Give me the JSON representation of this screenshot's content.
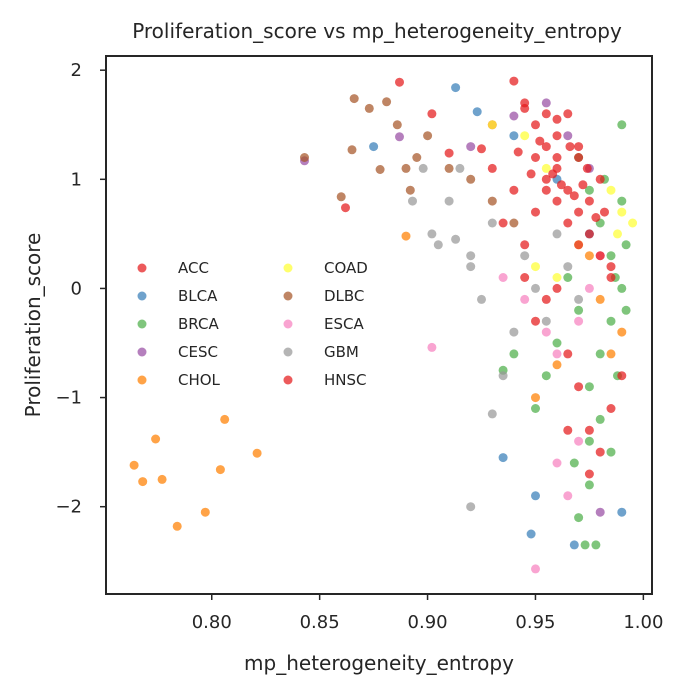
{
  "chart_data": {
    "type": "scatter",
    "title": "Proliferation_score vs mp_heterogeneity_entropy",
    "xlabel": "mp_heterogeneity_entropy",
    "ylabel": "Proliferation_score",
    "xlim": [
      0.751,
      1.004
    ],
    "ylim": [
      -2.8,
      2.13
    ],
    "x_ticks": [
      0.8,
      0.85,
      0.9,
      0.95,
      1.0
    ],
    "x_tick_labels": [
      "0.80",
      "0.85",
      "0.90",
      "0.95",
      "1.00"
    ],
    "y_ticks": [
      -2,
      -1,
      0,
      1,
      2
    ],
    "y_tick_labels": [
      "−2",
      "−1",
      "0",
      "1",
      "2"
    ],
    "grid": false,
    "legend_position": "center-left",
    "legend_columns": 2,
    "series": [
      {
        "name": "ACC",
        "color": "#e41a1c",
        "points": [
          [
            0.862,
            0.74
          ],
          [
            0.887,
            1.89
          ],
          [
            0.902,
            1.6
          ],
          [
            0.91,
            1.24
          ],
          [
            0.925,
            1.28
          ],
          [
            0.93,
            1.5
          ],
          [
            0.945,
            1.65
          ],
          [
            0.96,
            1.55
          ],
          [
            0.97,
            1.3
          ],
          [
            0.965,
            -1.3
          ],
          [
            0.975,
            -1.7
          ],
          [
            0.955,
            0.9
          ],
          [
            0.985,
            0.2
          ]
        ]
      },
      {
        "name": "BLCA",
        "color": "#377eb8",
        "points": [
          [
            0.875,
            1.3
          ],
          [
            0.913,
            1.84
          ],
          [
            0.923,
            1.62
          ],
          [
            0.94,
            1.4
          ],
          [
            0.95,
            -1.9
          ],
          [
            0.948,
            -2.25
          ],
          [
            0.935,
            -1.55
          ],
          [
            0.968,
            -2.35
          ],
          [
            0.99,
            -2.05
          ],
          [
            0.96,
            1.0
          ],
          [
            0.975,
            0.5
          ]
        ]
      },
      {
        "name": "BRCA",
        "color": "#4daf4a",
        "points": [
          [
            0.97,
            1.2
          ],
          [
            0.975,
            0.9
          ],
          [
            0.98,
            0.6
          ],
          [
            0.985,
            0.3
          ],
          [
            0.99,
            0.0
          ],
          [
            0.985,
            -0.3
          ],
          [
            0.98,
            -0.6
          ],
          [
            0.975,
            -0.9
          ],
          [
            0.98,
            -1.2
          ],
          [
            0.985,
            -1.5
          ],
          [
            0.975,
            -1.8
          ],
          [
            0.97,
            -2.1
          ],
          [
            0.973,
            -2.35
          ],
          [
            0.978,
            -2.35
          ],
          [
            0.99,
            0.8
          ],
          [
            0.992,
            0.4
          ],
          [
            0.992,
            -0.2
          ],
          [
            0.988,
            -0.8
          ],
          [
            0.99,
            1.5
          ],
          [
            0.96,
            -0.5
          ],
          [
            0.955,
            -0.8
          ],
          [
            0.95,
            -1.1
          ],
          [
            0.94,
            -0.6
          ],
          [
            0.935,
            -0.75
          ],
          [
            0.965,
            0.1
          ],
          [
            0.97,
            -0.2
          ],
          [
            0.982,
            1.0
          ],
          [
            0.987,
            0.1
          ],
          [
            0.975,
            -1.4
          ],
          [
            0.968,
            -1.6
          ]
        ]
      },
      {
        "name": "CESC",
        "color": "#984ea3",
        "points": [
          [
            0.843,
            1.17
          ],
          [
            0.887,
            1.39
          ],
          [
            0.92,
            1.3
          ],
          [
            0.94,
            1.58
          ],
          [
            0.955,
            1.7
          ],
          [
            0.965,
            1.4
          ],
          [
            0.975,
            1.1
          ],
          [
            0.98,
            -2.05
          ]
        ]
      },
      {
        "name": "CHOL",
        "color": "#ff7f00",
        "points": [
          [
            0.764,
            -1.62
          ],
          [
            0.768,
            -1.77
          ],
          [
            0.774,
            -1.38
          ],
          [
            0.777,
            -1.75
          ],
          [
            0.784,
            -2.18
          ],
          [
            0.797,
            -2.05
          ],
          [
            0.804,
            -1.66
          ],
          [
            0.806,
            -1.2
          ],
          [
            0.821,
            -1.51
          ],
          [
            0.89,
            0.48
          ],
          [
            0.99,
            -0.4
          ],
          [
            0.985,
            -0.6
          ],
          [
            0.98,
            -0.1
          ],
          [
            0.975,
            0.3
          ],
          [
            0.95,
            -1.0
          ],
          [
            0.96,
            -0.7
          ]
        ]
      },
      {
        "name": "COAD",
        "color": "#ffff33",
        "points": [
          [
            0.93,
            1.5
          ],
          [
            0.945,
            1.4
          ],
          [
            0.955,
            1.1
          ],
          [
            0.985,
            0.9
          ],
          [
            0.99,
            0.7
          ],
          [
            0.995,
            0.6
          ],
          [
            0.988,
            0.5
          ],
          [
            0.95,
            0.2
          ],
          [
            0.96,
            0.1
          ],
          [
            0.97,
            0.4
          ]
        ]
      },
      {
        "name": "DLBC",
        "color": "#a65628",
        "points": [
          [
            0.843,
            1.2
          ],
          [
            0.86,
            0.84
          ],
          [
            0.865,
            1.27
          ],
          [
            0.866,
            1.74
          ],
          [
            0.873,
            1.65
          ],
          [
            0.878,
            1.09
          ],
          [
            0.881,
            1.71
          ],
          [
            0.886,
            1.5
          ],
          [
            0.89,
            1.1
          ],
          [
            0.892,
            0.9
          ],
          [
            0.895,
            1.2
          ],
          [
            0.9,
            1.4
          ],
          [
            0.91,
            1.1
          ],
          [
            0.92,
            1.0
          ],
          [
            0.93,
            0.8
          ],
          [
            0.94,
            0.6
          ]
        ]
      },
      {
        "name": "ESCA",
        "color": "#f781bf",
        "points": [
          [
            0.902,
            -0.54
          ],
          [
            0.935,
            0.1
          ],
          [
            0.945,
            -0.1
          ],
          [
            0.95,
            -2.57
          ],
          [
            0.96,
            -1.6
          ],
          [
            0.965,
            -1.9
          ],
          [
            0.97,
            -0.3
          ],
          [
            0.975,
            0.0
          ],
          [
            0.98,
            0.3
          ],
          [
            0.955,
            -0.4
          ],
          [
            0.96,
            -0.6
          ],
          [
            0.97,
            -1.4
          ]
        ]
      },
      {
        "name": "GBM",
        "color": "#999999",
        "points": [
          [
            0.893,
            0.8
          ],
          [
            0.898,
            1.1
          ],
          [
            0.902,
            0.5
          ],
          [
            0.905,
            0.4
          ],
          [
            0.91,
            0.8
          ],
          [
            0.915,
            1.1
          ],
          [
            0.92,
            0.2
          ],
          [
            0.92,
            -2.0
          ],
          [
            0.925,
            -0.1
          ],
          [
            0.93,
            -1.15
          ],
          [
            0.93,
            0.6
          ],
          [
            0.935,
            -0.8
          ],
          [
            0.94,
            -0.4
          ],
          [
            0.945,
            0.3
          ],
          [
            0.95,
            0.0
          ],
          [
            0.955,
            -0.3
          ],
          [
            0.96,
            0.5
          ],
          [
            0.965,
            0.2
          ],
          [
            0.97,
            -0.1
          ],
          [
            0.913,
            0.45
          ],
          [
            0.92,
            0.3
          ]
        ]
      },
      {
        "name": "HNSC",
        "color": "#e41a1c",
        "points": [
          [
            0.94,
            1.9
          ],
          [
            0.945,
            1.7
          ],
          [
            0.95,
            1.5
          ],
          [
            0.955,
            1.3
          ],
          [
            0.96,
            1.1
          ],
          [
            0.965,
            0.9
          ],
          [
            0.97,
            0.7
          ],
          [
            0.975,
            0.5
          ],
          [
            0.98,
            0.3
          ],
          [
            0.985,
            0.1
          ],
          [
            0.95,
            1.2
          ],
          [
            0.955,
            1.0
          ],
          [
            0.96,
            0.8
          ],
          [
            0.965,
            0.6
          ],
          [
            0.97,
            0.4
          ],
          [
            0.975,
            0.8
          ],
          [
            0.98,
            1.0
          ],
          [
            0.96,
            1.4
          ],
          [
            0.965,
            1.6
          ],
          [
            0.97,
            1.2
          ],
          [
            0.95,
            0.7
          ],
          [
            0.945,
            0.4
          ],
          [
            0.94,
            0.9
          ],
          [
            0.93,
            1.1
          ],
          [
            0.935,
            0.6
          ],
          [
            0.955,
            1.6
          ],
          [
            0.96,
            1.2
          ],
          [
            0.962,
            0.95
          ],
          [
            0.958,
            1.05
          ],
          [
            0.968,
            0.85
          ],
          [
            0.972,
            0.95
          ],
          [
            0.978,
            0.65
          ],
          [
            0.952,
            1.35
          ],
          [
            0.948,
            1.05
          ],
          [
            0.942,
            1.25
          ],
          [
            0.966,
            1.3
          ],
          [
            0.974,
            1.1
          ],
          [
            0.982,
            0.7
          ],
          [
            0.99,
            -0.8
          ],
          [
            0.985,
            -1.1
          ],
          [
            0.98,
            -1.5
          ],
          [
            0.975,
            -1.3
          ],
          [
            0.97,
            -0.9
          ],
          [
            0.965,
            -0.6
          ],
          [
            0.95,
            -0.3
          ],
          [
            0.955,
            -0.1
          ],
          [
            0.96,
            0.0
          ],
          [
            0.945,
            0.1
          ]
        ]
      }
    ]
  }
}
